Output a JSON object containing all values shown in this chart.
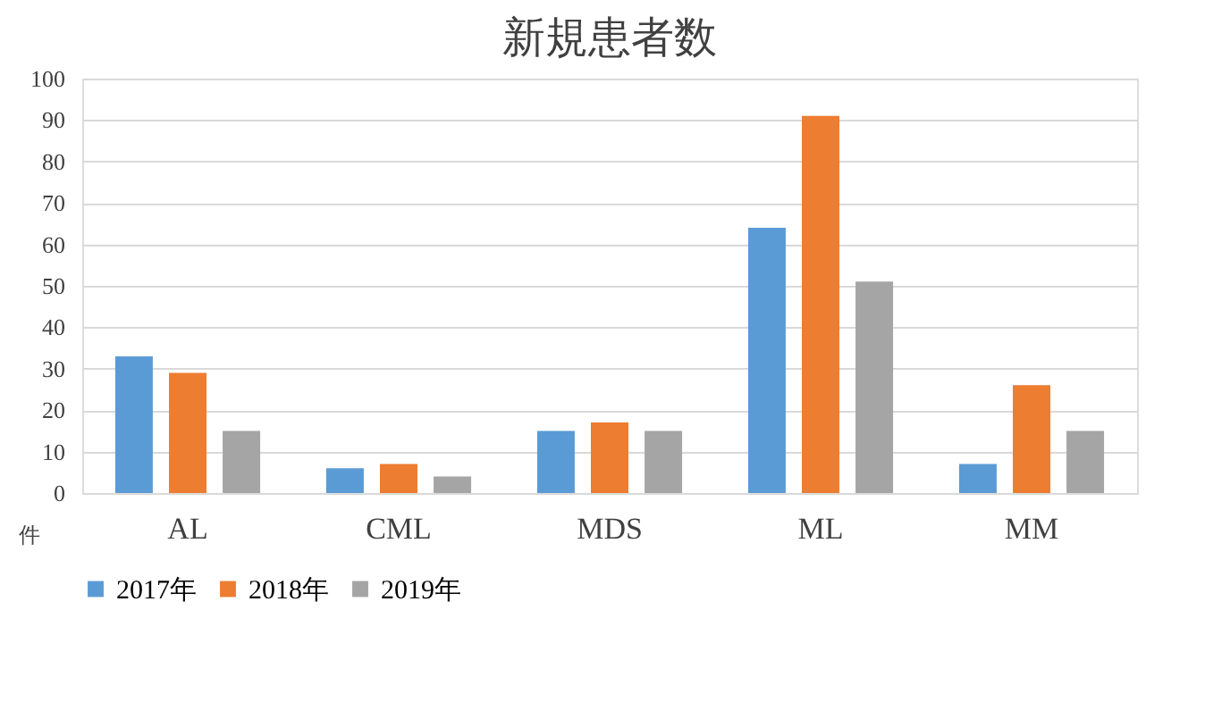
{
  "chart_data": {
    "type": "bar",
    "title": "新規患者数",
    "ylabel": "件",
    "categories": [
      "AL",
      "CML",
      "MDS",
      "ML",
      "MM"
    ],
    "series": [
      {
        "name": "2017年",
        "color": "#5b9bd5",
        "values": [
          33,
          6,
          15,
          64,
          7
        ]
      },
      {
        "name": "2018年",
        "color": "#ed7d31",
        "values": [
          29,
          7,
          17,
          91,
          26
        ]
      },
      {
        "name": "2019年",
        "color": "#a5a5a5",
        "values": [
          15,
          4,
          15,
          51,
          15
        ]
      }
    ],
    "ylim": [
      0,
      100
    ],
    "yticks": [
      0,
      10,
      20,
      30,
      40,
      50,
      60,
      70,
      80,
      90,
      100
    ],
    "grid": "y",
    "legend": "bottom"
  }
}
